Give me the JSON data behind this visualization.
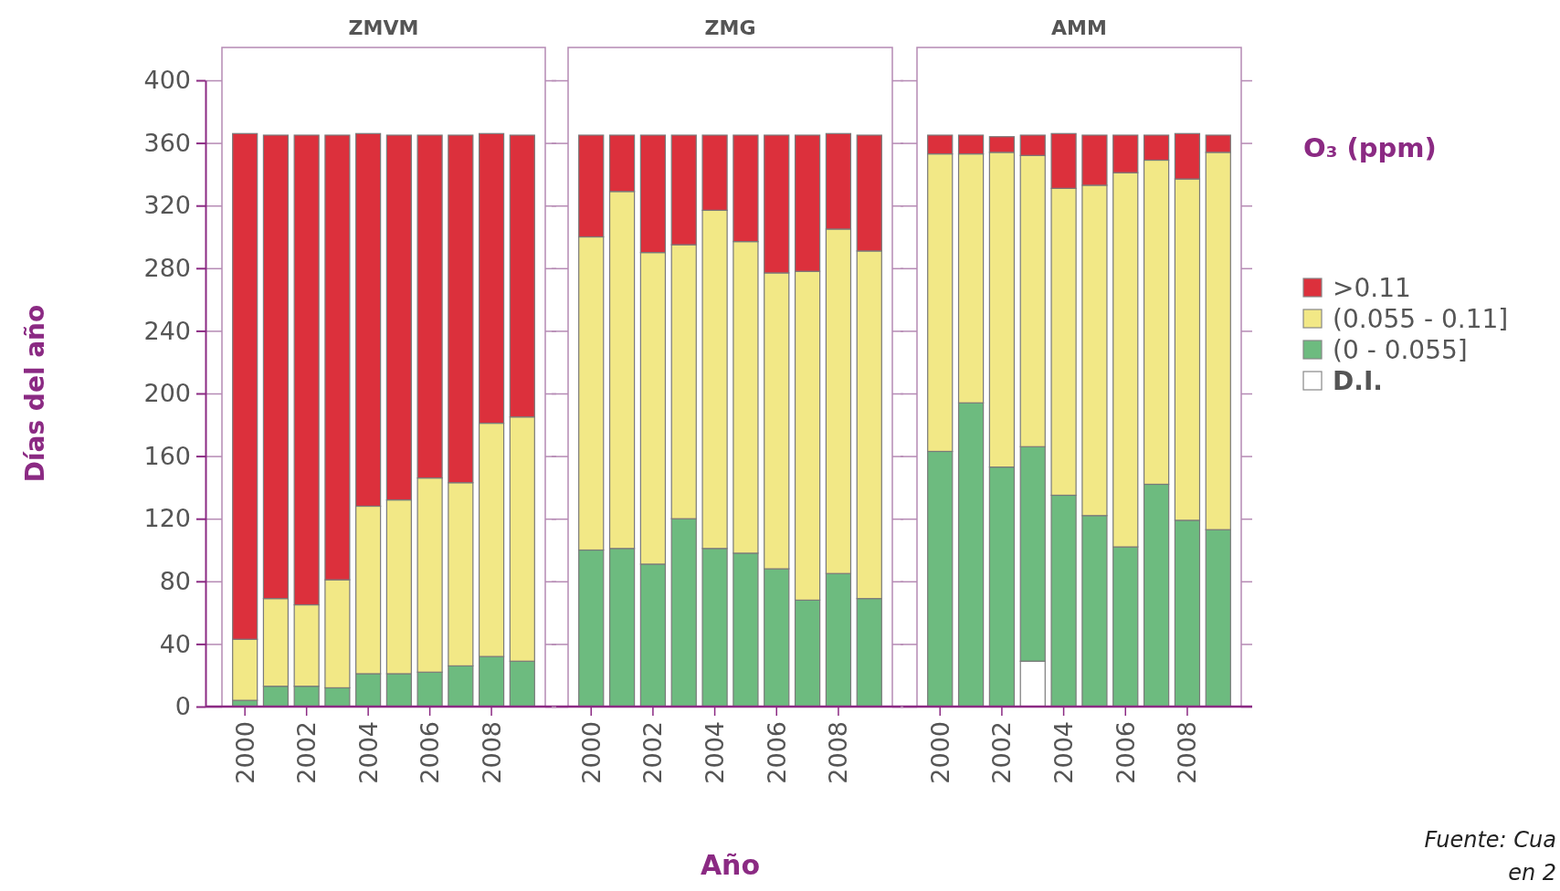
{
  "chart_data": [
    {
      "type": "bar",
      "stacked": true,
      "title": "ZMVM",
      "ylabel": "Días del año",
      "categories": [
        "2000",
        null,
        "2002",
        null,
        "2004",
        null,
        "2006",
        null,
        "2008",
        null
      ],
      "ylim": [
        0,
        400
      ],
      "yticks": [
        0,
        40,
        80,
        120,
        160,
        200,
        240,
        280,
        320,
        360,
        400
      ],
      "series": [
        {
          "color": "#6dbb7f",
          "values": [
            4,
            13,
            13,
            12,
            21,
            21,
            22,
            26,
            32,
            29
          ]
        },
        {
          "color": "#f2e886",
          "values": [
            39,
            56,
            52,
            69,
            107,
            111,
            124,
            117,
            149,
            156
          ]
        },
        {
          "color": "#dc303c",
          "values": [
            323,
            296,
            300,
            284,
            238,
            233,
            219,
            222,
            185,
            180
          ]
        }
      ]
    },
    {
      "type": "bar",
      "stacked": true,
      "title": "ZMG",
      "xlabel": "Año",
      "tick_labels": "x",
      "categories": [
        "2000",
        null,
        "2002",
        null,
        "2004",
        null,
        "2006",
        null,
        "2008",
        null
      ],
      "ylim": [
        0,
        400
      ],
      "yticks": [
        0,
        40,
        80,
        120,
        160,
        200,
        240,
        280,
        320,
        360,
        400
      ],
      "series": [
        {
          "color": "#6dbb7f",
          "values": [
            100,
            101,
            91,
            120,
            101,
            98,
            88,
            68,
            85,
            69
          ]
        },
        {
          "color": "#f2e886",
          "values": [
            200,
            228,
            199,
            175,
            216,
            199,
            189,
            210,
            220,
            222
          ]
        },
        {
          "color": "#dc303c",
          "values": [
            65,
            36,
            75,
            70,
            48,
            68,
            88,
            87,
            61,
            74
          ]
        }
      ]
    },
    {
      "type": "bar",
      "stacked": true,
      "title": "AMM",
      "tick_labels": "x",
      "categories": [
        "2000",
        null,
        "2002",
        null,
        "2004",
        null,
        "2006",
        null,
        "2008",
        null
      ],
      "ylim": [
        0,
        400
      ],
      "yticks": [
        0,
        40,
        80,
        120,
        160,
        200,
        240,
        280,
        320,
        360,
        400
      ],
      "legend": "right",
      "legend_title": "O₃ (ppm)",
      "annotations": [
        "Fuente: Cua",
        "en 2"
      ],
      "series": [
        {
          "name": "D.I.",
          "color": "#ffffff",
          "values": [
            0,
            0,
            0,
            29,
            0,
            0,
            0,
            0,
            0,
            0
          ]
        },
        {
          "name": "(0 - 0.055]",
          "color": "#6dbb7f",
          "values": [
            163,
            194,
            153,
            137,
            135,
            122,
            102,
            142,
            119,
            113
          ]
        },
        {
          "name": "(0.055 - 0.11]",
          "color": "#f2e886",
          "values": [
            190,
            159,
            201,
            186,
            196,
            211,
            239,
            207,
            218,
            241
          ]
        },
        {
          "name": ">0.11",
          "color": "#dc303c",
          "values": [
            12,
            12,
            10,
            13,
            35,
            32,
            24,
            16,
            29,
            11
          ]
        }
      ]
    }
  ]
}
